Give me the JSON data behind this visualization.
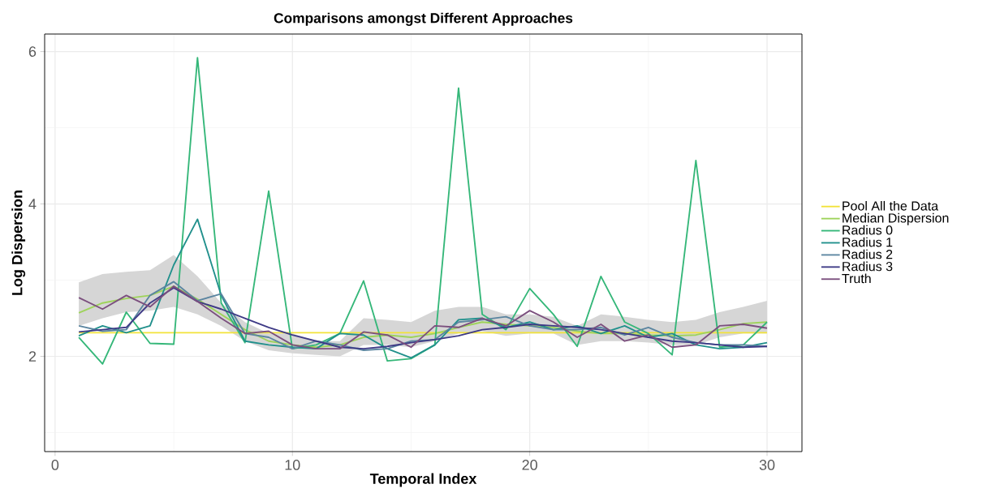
{
  "chart_data": {
    "type": "line",
    "title": "Comparisons amongst Different Approaches",
    "xlabel": "Temporal Index",
    "ylabel": "Log Dispersion",
    "x": [
      1,
      2,
      3,
      4,
      5,
      6,
      7,
      8,
      9,
      10,
      11,
      12,
      13,
      14,
      15,
      16,
      17,
      18,
      19,
      20,
      21,
      22,
      23,
      24,
      25,
      26,
      27,
      28,
      29,
      30
    ],
    "xlim": [
      -0.44,
      31.47
    ],
    "ylim": [
      0.75,
      6.23
    ],
    "xticks": [
      0,
      10,
      20,
      30
    ],
    "yticks": [
      2,
      4,
      6
    ],
    "grid": true,
    "legend": "right",
    "line_style": "solid",
    "series": [
      {
        "name": "Pool All the Data",
        "color": "#F2E33A",
        "values": [
          2.31,
          2.31,
          2.31,
          2.31,
          2.31,
          2.31,
          2.31,
          2.31,
          2.31,
          2.31,
          2.31,
          2.31,
          2.31,
          2.31,
          2.31,
          2.31,
          2.31,
          2.31,
          2.31,
          2.31,
          2.31,
          2.31,
          2.31,
          2.31,
          2.31,
          2.31,
          2.31,
          2.31,
          2.31,
          2.31
        ]
      },
      {
        "name": "Median Dispersion",
        "color": "#9ED35A",
        "values": [
          2.57,
          2.7,
          2.76,
          2.8,
          2.92,
          2.75,
          2.55,
          2.35,
          2.2,
          2.15,
          2.12,
          2.15,
          2.25,
          2.28,
          2.25,
          2.3,
          2.38,
          2.45,
          2.42,
          2.4,
          2.38,
          2.33,
          2.3,
          2.3,
          2.28,
          2.27,
          2.28,
          2.35,
          2.43,
          2.45
        ],
        "lower": [
          2.4,
          2.5,
          2.58,
          2.6,
          2.65,
          2.55,
          2.4,
          2.2,
          2.08,
          2.04,
          2.02,
          2.0,
          2.15,
          2.15,
          2.12,
          2.2,
          2.3,
          2.33,
          2.27,
          2.3,
          2.3,
          2.15,
          2.2,
          2.2,
          2.18,
          2.15,
          2.15,
          2.25,
          2.3,
          2.3
        ],
        "upper": [
          2.97,
          3.08,
          3.11,
          3.13,
          3.33,
          3.05,
          2.7,
          2.45,
          2.3,
          2.3,
          2.2,
          2.2,
          2.5,
          2.48,
          2.45,
          2.6,
          2.65,
          2.65,
          2.55,
          2.55,
          2.52,
          2.4,
          2.55,
          2.52,
          2.48,
          2.45,
          2.48,
          2.58,
          2.65,
          2.73
        ]
      },
      {
        "name": "Radius 0",
        "color": "#35B779",
        "values": [
          2.25,
          1.9,
          2.58,
          2.17,
          2.16,
          5.92,
          2.7,
          2.18,
          4.17,
          2.1,
          2.15,
          2.3,
          2.99,
          1.94,
          1.97,
          2.15,
          5.52,
          2.55,
          2.35,
          2.89,
          2.55,
          2.13,
          3.05,
          2.45,
          2.3,
          2.02,
          4.57,
          2.12,
          2.15,
          2.45
        ]
      },
      {
        "name": "Radius 1",
        "color": "#21908C",
        "values": [
          2.27,
          2.4,
          2.31,
          2.4,
          3.2,
          3.8,
          2.8,
          2.2,
          2.15,
          2.12,
          2.1,
          2.3,
          2.28,
          2.1,
          1.98,
          2.15,
          2.48,
          2.5,
          2.38,
          2.45,
          2.35,
          2.4,
          2.3,
          2.4,
          2.25,
          2.3,
          2.15,
          2.1,
          2.12,
          2.18
        ]
      },
      {
        "name": "Radius 2",
        "color": "#5B85A0",
        "values": [
          2.4,
          2.33,
          2.35,
          2.8,
          2.98,
          2.73,
          2.82,
          2.3,
          2.25,
          2.1,
          2.2,
          2.15,
          2.08,
          2.1,
          2.2,
          2.22,
          2.45,
          2.48,
          2.52,
          2.4,
          2.35,
          2.35,
          2.38,
          2.28,
          2.38,
          2.25,
          2.18,
          2.15,
          2.15,
          2.13
        ]
      },
      {
        "name": "Radius 3",
        "color": "#3E3A86",
        "values": [
          2.32,
          2.35,
          2.38,
          2.7,
          2.9,
          2.72,
          2.62,
          2.5,
          2.38,
          2.28,
          2.2,
          2.12,
          2.1,
          2.13,
          2.18,
          2.22,
          2.27,
          2.35,
          2.38,
          2.42,
          2.4,
          2.38,
          2.35,
          2.3,
          2.25,
          2.2,
          2.18,
          2.15,
          2.12,
          2.13
        ]
      },
      {
        "name": "Truth",
        "color": "#7B4F7E",
        "values": [
          2.77,
          2.62,
          2.8,
          2.65,
          2.92,
          2.72,
          2.5,
          2.3,
          2.33,
          2.15,
          2.1,
          2.1,
          2.32,
          2.28,
          2.12,
          2.4,
          2.38,
          2.5,
          2.4,
          2.6,
          2.45,
          2.25,
          2.42,
          2.2,
          2.28,
          2.12,
          2.15,
          2.4,
          2.42,
          2.37
        ]
      }
    ]
  }
}
